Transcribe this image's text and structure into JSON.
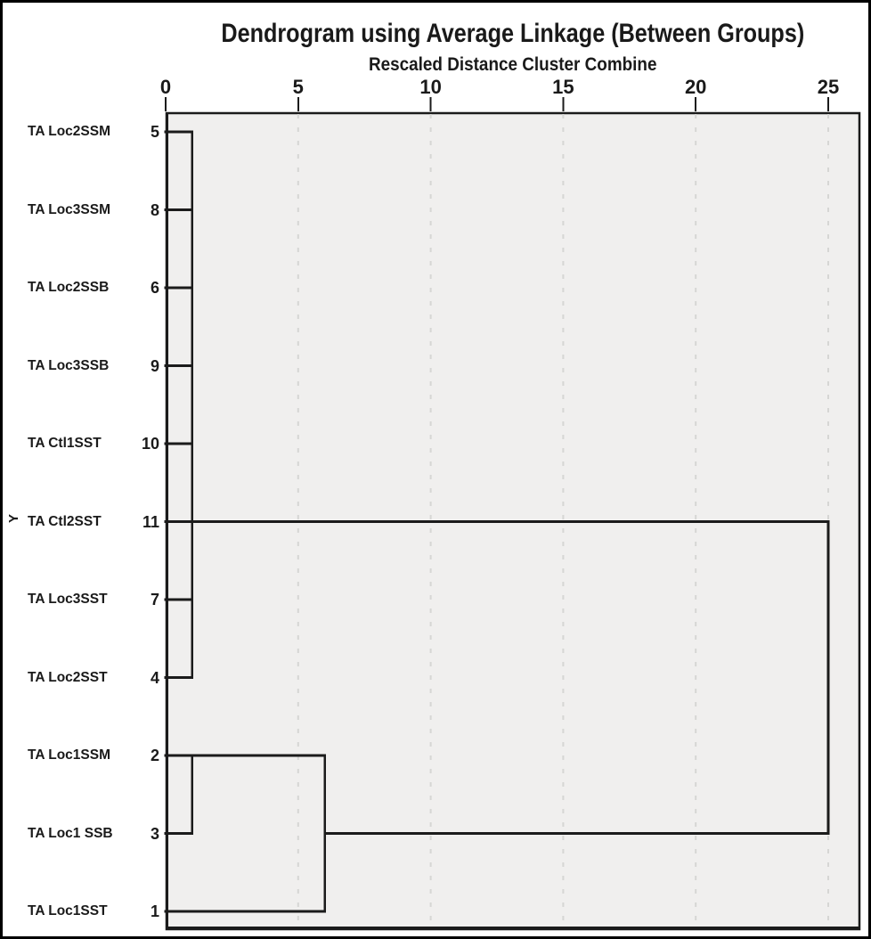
{
  "chart_data": {
    "type": "dendrogram",
    "title": "Dendrogram using Average Linkage (Between Groups)",
    "subtitle": "Rescaled Distance Cluster Combine",
    "y_axis_label": "Y",
    "x_axis": {
      "ticks": [
        0,
        5,
        10,
        15,
        20,
        25
      ],
      "range": [
        0,
        25
      ]
    },
    "grid": "dashed vertical gridlines at 5,10,15,20,25",
    "legend": "none",
    "rows": [
      {
        "label": "TA Loc2SSM",
        "case": "5"
      },
      {
        "label": "TA Loc3SSM",
        "case": "8"
      },
      {
        "label": "TA Loc2SSB",
        "case": "6"
      },
      {
        "label": "TA Loc3SSB",
        "case": "9"
      },
      {
        "label": "TA Ctl1SST",
        "case": "10"
      },
      {
        "label": "TA Ctl2SST",
        "case": "11"
      },
      {
        "label": "TA Loc3SST",
        "case": "7"
      },
      {
        "label": "TA Loc2SST",
        "case": "4"
      },
      {
        "label": "TA Loc1SSM",
        "case": "2"
      },
      {
        "label": "TA Loc1 SSB",
        "case": "3"
      },
      {
        "label": "TA Loc1SST",
        "case": "1"
      }
    ],
    "merges": [
      {
        "members": [
          5,
          8,
          6,
          9,
          10,
          11,
          7,
          4
        ],
        "rescaled_distance": 1
      },
      {
        "members": [
          2,
          3
        ],
        "rescaled_distance": 1
      },
      {
        "members": [
          [
            2,
            3
          ],
          1
        ],
        "rescaled_distance": 6
      },
      {
        "members": [
          [
            5,
            8,
            6,
            9,
            10,
            11,
            7,
            4
          ],
          [
            2,
            3,
            1
          ]
        ],
        "rescaled_distance": 25
      }
    ],
    "links": {
      "horizontal": [
        {
          "row": 0,
          "from": 0,
          "to": 1
        },
        {
          "row": 1,
          "from": 0,
          "to": 1
        },
        {
          "row": 2,
          "from": 0,
          "to": 1
        },
        {
          "row": 3,
          "from": 0,
          "to": 1
        },
        {
          "row": 4,
          "from": 0,
          "to": 1
        },
        {
          "row": 5,
          "from": 0,
          "to": 25
        },
        {
          "row": 6,
          "from": 0,
          "to": 1
        },
        {
          "row": 7,
          "from": 0,
          "to": 1
        },
        {
          "row": 8,
          "from": 0,
          "to": 6
        },
        {
          "row": 9,
          "from": 0,
          "to": 1
        },
        {
          "row": 9,
          "from": 6,
          "to": 25
        },
        {
          "row": 10,
          "from": 0,
          "to": 6
        }
      ],
      "vertical": [
        {
          "at": 1,
          "from_row": 0,
          "to_row": 7
        },
        {
          "at": 1,
          "from_row": 8,
          "to_row": 9
        },
        {
          "at": 6,
          "from_row": 8,
          "to_row": 10
        },
        {
          "at": 25,
          "from_row": 5,
          "to_row": 9
        }
      ]
    },
    "colors": {
      "line": "#1b1b1b",
      "plot_bg": "#f0efee",
      "gridline": "#d6d6d4",
      "text": "#1a1a1a",
      "background": "#ffffff"
    }
  }
}
